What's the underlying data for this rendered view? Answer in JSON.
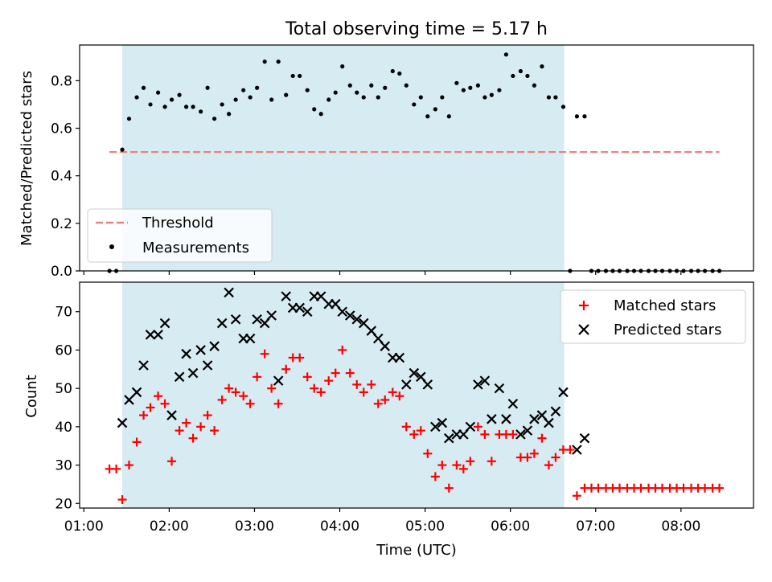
{
  "figure": {
    "title": "Total observing time = 5.17 h"
  },
  "colors": {
    "shade": "#add8e6",
    "threshold": "#f08080",
    "measurement": "#000000",
    "matched": "#ff0000",
    "predicted": "#000000"
  },
  "chart_data": [
    {
      "type": "scatter",
      "panel": "top",
      "ylabel": "Matched/Predicted stars",
      "xlabel": "",
      "xlim": [
        0.95,
        8.85
      ],
      "ylim": [
        0.0,
        0.95
      ],
      "yticks": [
        0.0,
        0.2,
        0.4,
        0.6,
        0.8
      ],
      "ytick_labels": [
        "0.0",
        "0.2",
        "0.4",
        "0.6",
        "0.8"
      ],
      "x_unit": "hours (UTC)",
      "shaded_interval": [
        1.45,
        6.63
      ],
      "legend_position": "lower-left",
      "threshold": {
        "name": "Threshold",
        "y": 0.5,
        "x_range": [
          1.3,
          8.45
        ],
        "style": "dashed"
      },
      "series": [
        {
          "name": "Measurements",
          "marker": "dot",
          "points": [
            [
              1.3,
              0.0
            ],
            [
              1.38,
              0.0
            ],
            [
              1.45,
              0.51
            ],
            [
              1.53,
              0.64
            ],
            [
              1.62,
              0.73
            ],
            [
              1.7,
              0.77
            ],
            [
              1.78,
              0.7
            ],
            [
              1.87,
              0.75
            ],
            [
              1.95,
              0.69
            ],
            [
              2.03,
              0.72
            ],
            [
              2.12,
              0.74
            ],
            [
              2.2,
              0.69
            ],
            [
              2.28,
              0.69
            ],
            [
              2.37,
              0.67
            ],
            [
              2.45,
              0.77
            ],
            [
              2.53,
              0.64
            ],
            [
              2.62,
              0.7
            ],
            [
              2.7,
              0.66
            ],
            [
              2.78,
              0.72
            ],
            [
              2.87,
              0.76
            ],
            [
              2.95,
              0.73
            ],
            [
              3.03,
              0.77
            ],
            [
              3.12,
              0.88
            ],
            [
              3.2,
              0.72
            ],
            [
              3.28,
              0.88
            ],
            [
              3.37,
              0.74
            ],
            [
              3.45,
              0.82
            ],
            [
              3.53,
              0.82
            ],
            [
              3.62,
              0.76
            ],
            [
              3.7,
              0.68
            ],
            [
              3.78,
              0.66
            ],
            [
              3.87,
              0.72
            ],
            [
              3.95,
              0.75
            ],
            [
              4.03,
              0.86
            ],
            [
              4.12,
              0.78
            ],
            [
              4.2,
              0.75
            ],
            [
              4.28,
              0.73
            ],
            [
              4.37,
              0.78
            ],
            [
              4.45,
              0.73
            ],
            [
              4.53,
              0.77
            ],
            [
              4.62,
              0.84
            ],
            [
              4.7,
              0.83
            ],
            [
              4.78,
              0.78
            ],
            [
              4.87,
              0.7
            ],
            [
              4.95,
              0.73
            ],
            [
              5.03,
              0.65
            ],
            [
              5.12,
              0.68
            ],
            [
              5.2,
              0.73
            ],
            [
              5.28,
              0.65
            ],
            [
              5.37,
              0.79
            ],
            [
              5.45,
              0.76
            ],
            [
              5.53,
              0.77
            ],
            [
              5.62,
              0.78
            ],
            [
              5.7,
              0.73
            ],
            [
              5.78,
              0.74
            ],
            [
              5.87,
              0.76
            ],
            [
              5.95,
              0.91
            ],
            [
              6.03,
              0.82
            ],
            [
              6.12,
              0.84
            ],
            [
              6.2,
              0.82
            ],
            [
              6.28,
              0.78
            ],
            [
              6.37,
              0.86
            ],
            [
              6.45,
              0.73
            ],
            [
              6.53,
              0.73
            ],
            [
              6.62,
              0.69
            ],
            [
              6.7,
              0.0
            ],
            [
              6.78,
              0.65
            ],
            [
              6.87,
              0.65
            ],
            [
              6.95,
              0.0
            ],
            [
              7.03,
              0.0
            ],
            [
              7.12,
              0.0
            ],
            [
              7.2,
              0.0
            ],
            [
              7.28,
              0.0
            ],
            [
              7.37,
              0.0
            ],
            [
              7.45,
              0.0
            ],
            [
              7.53,
              0.0
            ],
            [
              7.62,
              0.0
            ],
            [
              7.7,
              0.0
            ],
            [
              7.78,
              0.0
            ],
            [
              7.87,
              0.0
            ],
            [
              7.95,
              0.0
            ],
            [
              8.03,
              0.0
            ],
            [
              8.12,
              0.0
            ],
            [
              8.2,
              0.0
            ],
            [
              8.28,
              0.0
            ],
            [
              8.37,
              0.0
            ],
            [
              8.45,
              0.0
            ]
          ]
        }
      ]
    },
    {
      "type": "scatter",
      "panel": "bottom",
      "ylabel": "Count",
      "xlabel": "Time (UTC)",
      "xlim": [
        0.95,
        8.85
      ],
      "ylim": [
        18.8,
        77.7
      ],
      "yticks": [
        20,
        30,
        40,
        50,
        60,
        70
      ],
      "ytick_labels": [
        "20",
        "30",
        "40",
        "50",
        "60",
        "70"
      ],
      "xticks": [
        1,
        2,
        3,
        4,
        5,
        6,
        7,
        8
      ],
      "xtick_labels": [
        "01:00",
        "02:00",
        "03:00",
        "04:00",
        "05:00",
        "06:00",
        "07:00",
        "08:00"
      ],
      "x_unit": "hours (UTC)",
      "shaded_interval": [
        1.45,
        6.63
      ],
      "legend_position": "upper-right",
      "series": [
        {
          "name": "Matched stars",
          "marker": "plus",
          "points": [
            [
              1.3,
              29
            ],
            [
              1.38,
              29
            ],
            [
              1.45,
              21
            ],
            [
              1.53,
              30
            ],
            [
              1.62,
              36
            ],
            [
              1.7,
              43
            ],
            [
              1.78,
              45
            ],
            [
              1.87,
              48
            ],
            [
              1.95,
              46
            ],
            [
              2.03,
              31
            ],
            [
              2.12,
              39
            ],
            [
              2.2,
              41
            ],
            [
              2.28,
              37
            ],
            [
              2.37,
              40
            ],
            [
              2.45,
              43
            ],
            [
              2.53,
              39
            ],
            [
              2.62,
              47
            ],
            [
              2.7,
              50
            ],
            [
              2.78,
              49
            ],
            [
              2.87,
              48
            ],
            [
              2.95,
              46
            ],
            [
              3.03,
              53
            ],
            [
              3.12,
              59
            ],
            [
              3.2,
              50
            ],
            [
              3.28,
              46
            ],
            [
              3.37,
              55
            ],
            [
              3.45,
              58
            ],
            [
              3.53,
              58
            ],
            [
              3.62,
              53
            ],
            [
              3.7,
              50
            ],
            [
              3.78,
              49
            ],
            [
              3.87,
              52
            ],
            [
              3.95,
              54
            ],
            [
              4.03,
              60
            ],
            [
              4.12,
              54
            ],
            [
              4.2,
              51
            ],
            [
              4.28,
              49
            ],
            [
              4.37,
              51
            ],
            [
              4.45,
              46
            ],
            [
              4.53,
              47
            ],
            [
              4.62,
              49
            ],
            [
              4.7,
              48
            ],
            [
              4.78,
              40
            ],
            [
              4.87,
              38
            ],
            [
              4.95,
              39
            ],
            [
              5.03,
              33
            ],
            [
              5.12,
              27
            ],
            [
              5.2,
              30
            ],
            [
              5.28,
              24
            ],
            [
              5.37,
              30
            ],
            [
              5.45,
              29
            ],
            [
              5.53,
              31
            ],
            [
              5.62,
              40
            ],
            [
              5.7,
              38
            ],
            [
              5.78,
              31
            ],
            [
              5.87,
              38
            ],
            [
              5.95,
              38
            ],
            [
              6.03,
              38
            ],
            [
              6.12,
              32
            ],
            [
              6.2,
              32
            ],
            [
              6.28,
              33
            ],
            [
              6.37,
              37
            ],
            [
              6.45,
              30
            ],
            [
              6.53,
              32
            ],
            [
              6.62,
              34
            ],
            [
              6.7,
              34
            ],
            [
              6.78,
              22
            ],
            [
              6.87,
              24
            ],
            [
              6.95,
              24
            ],
            [
              7.03,
              24
            ],
            [
              7.12,
              24
            ],
            [
              7.2,
              24
            ],
            [
              7.28,
              24
            ],
            [
              7.37,
              24
            ],
            [
              7.45,
              24
            ],
            [
              7.53,
              24
            ],
            [
              7.62,
              24
            ],
            [
              7.7,
              24
            ],
            [
              7.78,
              24
            ],
            [
              7.87,
              24
            ],
            [
              7.95,
              24
            ],
            [
              8.03,
              24
            ],
            [
              8.12,
              24
            ],
            [
              8.2,
              24
            ],
            [
              8.28,
              24
            ],
            [
              8.37,
              24
            ],
            [
              8.45,
              24
            ]
          ]
        },
        {
          "name": "Predicted stars",
          "marker": "x",
          "points": [
            [
              1.45,
              41
            ],
            [
              1.53,
              47
            ],
            [
              1.62,
              49
            ],
            [
              1.7,
              56
            ],
            [
              1.78,
              64
            ],
            [
              1.87,
              64
            ],
            [
              1.95,
              67
            ],
            [
              2.03,
              43
            ],
            [
              2.12,
              53
            ],
            [
              2.2,
              59
            ],
            [
              2.28,
              54
            ],
            [
              2.37,
              60
            ],
            [
              2.45,
              56
            ],
            [
              2.53,
              61
            ],
            [
              2.62,
              67
            ],
            [
              2.7,
              75
            ],
            [
              2.78,
              68
            ],
            [
              2.87,
              63
            ],
            [
              2.95,
              63
            ],
            [
              3.03,
              68
            ],
            [
              3.12,
              67
            ],
            [
              3.2,
              69
            ],
            [
              3.28,
              52
            ],
            [
              3.37,
              74
            ],
            [
              3.45,
              71
            ],
            [
              3.53,
              71
            ],
            [
              3.62,
              70
            ],
            [
              3.7,
              74
            ],
            [
              3.78,
              74
            ],
            [
              3.87,
              72
            ],
            [
              3.95,
              72
            ],
            [
              4.03,
              70
            ],
            [
              4.12,
              69
            ],
            [
              4.2,
              68
            ],
            [
              4.28,
              67
            ],
            [
              4.37,
              65
            ],
            [
              4.45,
              63
            ],
            [
              4.53,
              61
            ],
            [
              4.62,
              58
            ],
            [
              4.7,
              58
            ],
            [
              4.78,
              51
            ],
            [
              4.87,
              54
            ],
            [
              4.95,
              53
            ],
            [
              5.03,
              51
            ],
            [
              5.12,
              40
            ],
            [
              5.2,
              41
            ],
            [
              5.28,
              37
            ],
            [
              5.37,
              38
            ],
            [
              5.45,
              38
            ],
            [
              5.53,
              40
            ],
            [
              5.62,
              51
            ],
            [
              5.7,
              52
            ],
            [
              5.78,
              42
            ],
            [
              5.87,
              50
            ],
            [
              5.95,
              42
            ],
            [
              6.03,
              46
            ],
            [
              6.12,
              38
            ],
            [
              6.2,
              39
            ],
            [
              6.28,
              42
            ],
            [
              6.37,
              43
            ],
            [
              6.45,
              41
            ],
            [
              6.53,
              44
            ],
            [
              6.62,
              49
            ],
            [
              6.78,
              34
            ],
            [
              6.87,
              37
            ]
          ]
        }
      ]
    }
  ]
}
